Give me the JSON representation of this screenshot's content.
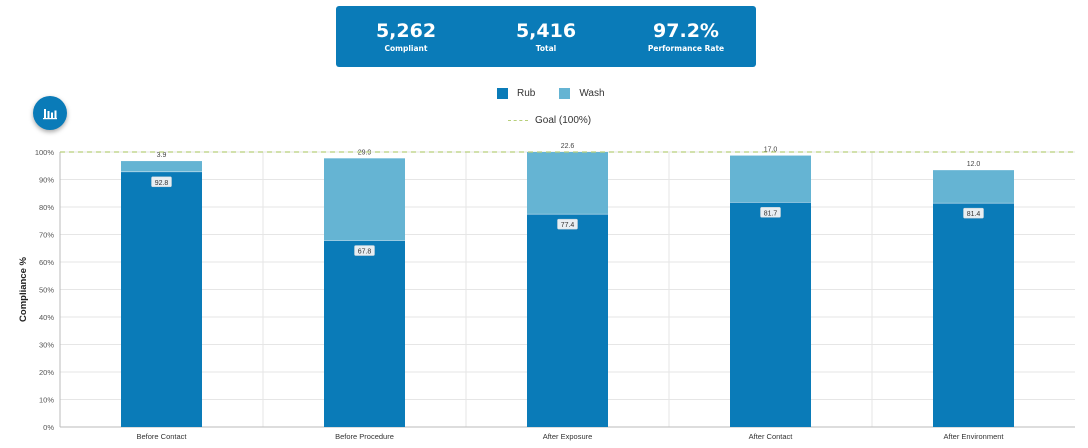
{
  "stats": [
    {
      "value": "5,262",
      "label": "Compliant"
    },
    {
      "value": "5,416",
      "label": "Total"
    },
    {
      "value": "97.2%",
      "label": "Performance Rate"
    }
  ],
  "chart_button": {
    "icon": "bar-chart-icon"
  },
  "colors": {
    "rub": "#0a7bb8",
    "wash": "#65b4d3",
    "goal": "#b7cf7a",
    "header": "#0a7bb8"
  },
  "legend": {
    "rub": "Rub",
    "wash": "Wash",
    "goal": "Goal (100%)"
  },
  "chart_data": {
    "type": "bar",
    "stacked": true,
    "categories": [
      "Before Contact",
      "Before Procedure",
      "After Exposure",
      "After Contact",
      "After Environment"
    ],
    "series": [
      {
        "name": "Rub",
        "values": [
          92.8,
          67.8,
          77.4,
          81.7,
          81.4
        ]
      },
      {
        "name": "Wash",
        "values": [
          3.9,
          29.9,
          22.6,
          17.0,
          12.0
        ]
      }
    ],
    "goal": 100,
    "ylabel": "Compliance %",
    "xlabel": "",
    "ylim": [
      0,
      100
    ],
    "yticks": [
      "0%",
      "10%",
      "20%",
      "30%",
      "40%",
      "50%",
      "60%",
      "70%",
      "80%",
      "90%",
      "100%"
    ],
    "grid": true,
    "legend_position": "top-center"
  }
}
